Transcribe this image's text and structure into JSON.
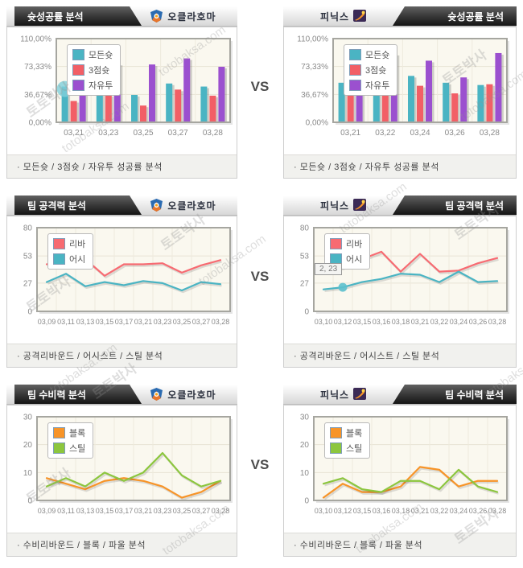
{
  "page": {
    "vs_label": "VS",
    "watermark": {
      "korean": "토토박사",
      "latin": "totobaksa.com"
    }
  },
  "teams": {
    "left": {
      "name": "오클라호마"
    },
    "right": {
      "name": "피닉스"
    }
  },
  "colors": {
    "accent_orange": "#ff9d00",
    "accent_blue": "#4a87d3",
    "header_dark": "#2a2a2a",
    "plot_background": "#faf8ef",
    "plot_border": "#a6a6a0",
    "all_shots_teal": "#4ab4c3",
    "three_point_red": "#f25f66",
    "free_throw_purple": "#9b50cf",
    "rebound_pink": "#f76b72",
    "assist_teal": "#4ab4c3",
    "block_orange": "#f79428",
    "steal_green": "#8cc63e"
  },
  "cards": [
    {
      "side": "left",
      "title": "슛성공률 분석",
      "team": "오클라호마",
      "caption": "·  모든슛 / 3점슛 / 자유투 성공률 분석"
    },
    {
      "side": "right",
      "title": "슛성공률 분석",
      "team": "피닉스",
      "caption": "·  모든슛 / 3점슛 / 자유투 성공률 분석"
    },
    {
      "side": "left",
      "title": "팀 공격력 분석",
      "team": "오클라호마",
      "caption": "·  공격리바운드 / 어시스트 / 스틸 분석"
    },
    {
      "side": "right",
      "title": "팀 공격력 분석",
      "team": "피닉스",
      "caption": "·  공격리바운드 / 어시스트 / 스틸 분석"
    },
    {
      "side": "left",
      "title": "팀 수비력 분석",
      "team": "오클라호마",
      "caption": "·  수비리바운드 / 블록 / 파울 분석"
    },
    {
      "side": "right",
      "title": "팀 수비력 분석",
      "team": "피닉스",
      "caption": "·  수비리바운드 / 블록 / 파울 분석"
    }
  ],
  "chart_data": [
    {
      "type": "bar",
      "title": "슛성공률 분석 - 오클라호마",
      "categories": [
        "03,21",
        "03,23",
        "03,25",
        "03,27",
        "03,28"
      ],
      "series": [
        {
          "name": "모든슛",
          "color": "#4ab4c3",
          "values": [
            47,
            49,
            36,
            51,
            47
          ]
        },
        {
          "name": "3점슛",
          "color": "#f25f66",
          "values": [
            28,
            36,
            22,
            43,
            35
          ]
        },
        {
          "name": "자유투",
          "color": "#9b50cf",
          "values": [
            57,
            77,
            76,
            84,
            73
          ]
        }
      ],
      "ymax": 110,
      "yticks": [
        {
          "v": 0,
          "label": "0,00%"
        },
        {
          "v": 36.67,
          "label": "36,67%"
        },
        {
          "v": 73.33,
          "label": "73,33%"
        },
        {
          "v": 110,
          "label": "110,00%"
        }
      ],
      "legend_position": "top-left",
      "highlight": {
        "kind": "bar-circle",
        "category": 0,
        "series": 0
      }
    },
    {
      "type": "bar",
      "title": "슛성공률 분석 - 피닉스",
      "categories": [
        "03,21",
        "03,22",
        "03,24",
        "03,26",
        "03,28"
      ],
      "series": [
        {
          "name": "모든슛",
          "color": "#4ab4c3",
          "values": [
            52,
            57,
            61,
            52,
            49
          ]
        },
        {
          "name": "3점슛",
          "color": "#f25f66",
          "values": [
            50,
            55,
            48,
            38,
            50
          ]
        },
        {
          "name": "자유투",
          "color": "#9b50cf",
          "values": [
            60,
            90,
            81,
            59,
            91
          ]
        }
      ],
      "ymax": 110,
      "yticks": [
        {
          "v": 0,
          "label": "0,00%"
        },
        {
          "v": 36.67,
          "label": "36,67%"
        },
        {
          "v": 73.33,
          "label": "73,33%"
        },
        {
          "v": 110,
          "label": "110,00%"
        }
      ],
      "legend_position": "top-left"
    },
    {
      "type": "line",
      "title": "팀 공격력 분석 - 오클라호마",
      "categories": [
        "03,09",
        "03,11",
        "03,13",
        "03,15",
        "03,17",
        "03,21",
        "03,23",
        "03,25",
        "03,27",
        "03,28"
      ],
      "series": [
        {
          "name": "리바",
          "color": "#f76b72",
          "values": [
            45,
            46,
            50,
            34,
            45,
            45,
            46,
            37,
            44,
            49
          ]
        },
        {
          "name": "어시",
          "color": "#4ab4c3",
          "values": [
            28,
            36,
            24,
            28,
            25,
            29,
            27,
            20,
            28,
            26
          ]
        }
      ],
      "ymax": 80,
      "yticks": [
        {
          "v": 0,
          "label": "0"
        },
        {
          "v": 27,
          "label": "27"
        },
        {
          "v": 53,
          "label": "53"
        },
        {
          "v": 80,
          "label": "80"
        }
      ],
      "legend_position": "top-left"
    },
    {
      "type": "line",
      "title": "팀 공격력 분석 - 피닉스",
      "categories": [
        "03,10",
        "03,12",
        "03,15",
        "03,16",
        "03,18",
        "03,21",
        "03,22",
        "03,24",
        "03,26",
        "03,28"
      ],
      "series": [
        {
          "name": "리바",
          "color": "#f76b72",
          "values": [
            41,
            42,
            50,
            57,
            38,
            55,
            38,
            39,
            46,
            51
          ]
        },
        {
          "name": "어시",
          "color": "#4ab4c3",
          "values": [
            21,
            23,
            28,
            31,
            36,
            35,
            28,
            38,
            28,
            29
          ]
        }
      ],
      "ymax": 80,
      "yticks": [
        {
          "v": 0,
          "label": "0"
        },
        {
          "v": 27,
          "label": "27"
        },
        {
          "v": 53,
          "label": "53"
        },
        {
          "v": 80,
          "label": "80"
        }
      ],
      "legend_position": "top-left",
      "highlight": {
        "kind": "point",
        "series": 1,
        "index": 1,
        "tooltip": "2, 23"
      }
    },
    {
      "type": "line",
      "title": "팀 수비력 분석 - 오클라호마",
      "categories": [
        "03,09",
        "03,11",
        "03,13",
        "03,15",
        "03,17",
        "03,21",
        "03,23",
        "03,25",
        "03,27",
        "03,28"
      ],
      "series": [
        {
          "name": "블록",
          "color": "#f79428",
          "values": [
            8,
            6,
            4,
            7,
            8,
            7,
            5,
            1,
            3,
            7
          ]
        },
        {
          "name": "스틸",
          "color": "#8cc63e",
          "values": [
            5,
            8,
            5,
            10,
            7,
            10,
            17,
            9,
            5,
            7
          ]
        }
      ],
      "ymax": 30,
      "yticks": [
        {
          "v": 0,
          "label": "0"
        },
        {
          "v": 10,
          "label": "10"
        },
        {
          "v": 20,
          "label": "20"
        },
        {
          "v": 30,
          "label": "30"
        }
      ],
      "legend_position": "top-left"
    },
    {
      "type": "line",
      "title": "팀 수비력 분석 - 피닉스",
      "categories": [
        "03,10",
        "03,12",
        "03,15",
        "03,16",
        "03,18",
        "03,21",
        "03,22",
        "03,24",
        "03,26",
        "03,28"
      ],
      "series": [
        {
          "name": "블록",
          "color": "#f79428",
          "values": [
            1,
            6,
            3,
            3,
            5,
            12,
            11,
            5,
            7,
            7
          ]
        },
        {
          "name": "스틸",
          "color": "#8cc63e",
          "values": [
            6,
            8,
            4,
            3,
            7,
            7,
            4,
            11,
            5,
            3
          ]
        }
      ],
      "ymax": 30,
      "yticks": [
        {
          "v": 0,
          "label": "0"
        },
        {
          "v": 10,
          "label": "10"
        },
        {
          "v": 20,
          "label": "20"
        },
        {
          "v": 30,
          "label": "30"
        }
      ],
      "legend_position": "top-left"
    }
  ]
}
